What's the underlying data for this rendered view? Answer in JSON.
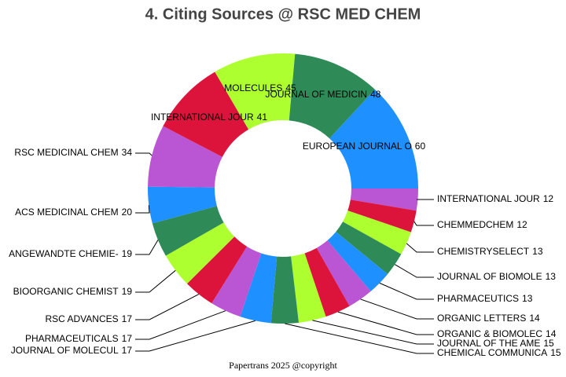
{
  "chart_data": {
    "type": "donut",
    "title": "4. Citing Sources @ RSC MED CHEM",
    "footer": "Papertrans 2025 @copyright",
    "categories": [
      "EUROPEAN JOURNAL O",
      "INTERNATIONAL JOUR",
      "CHEMMEDCHEM",
      "CHEMISTRYSELECT",
      "JOURNAL OF BIOMOLE",
      "PHARMACEUTICS",
      "ORGANIC LETTERS",
      "ORGANIC & BIOMOLEC",
      "JOURNAL OF THE AME",
      "CHEMICAL COMMUNICA",
      "JOURNAL OF MOLECUL",
      "PHARMACEUTICALS",
      "RSC ADVANCES",
      "BIOORGANIC CHEMIST",
      "ANGEWANDTE CHEMIE-",
      "ACS MEDICINAL CHEM",
      "RSC MEDICINAL CHEM",
      "INTERNATIONAL JOUR",
      "MOLECULES",
      "JOURNAL OF MEDICIN"
    ],
    "values": [
      60,
      12,
      12,
      13,
      13,
      13,
      14,
      14,
      15,
      15,
      17,
      17,
      17,
      19,
      19,
      20,
      34,
      41,
      45,
      48
    ],
    "colors": [
      "#1e90ff",
      "#ba55d3",
      "#dc143c",
      "#adff2f",
      "#2e8b57",
      "#1e90ff",
      "#ba55d3",
      "#dc143c",
      "#adff2f",
      "#2e8b57",
      "#1e90ff",
      "#ba55d3",
      "#dc143c",
      "#adff2f",
      "#2e8b57",
      "#1e90ff",
      "#ba55d3",
      "#dc143c",
      "#adff2f",
      "#2e8b57"
    ]
  }
}
